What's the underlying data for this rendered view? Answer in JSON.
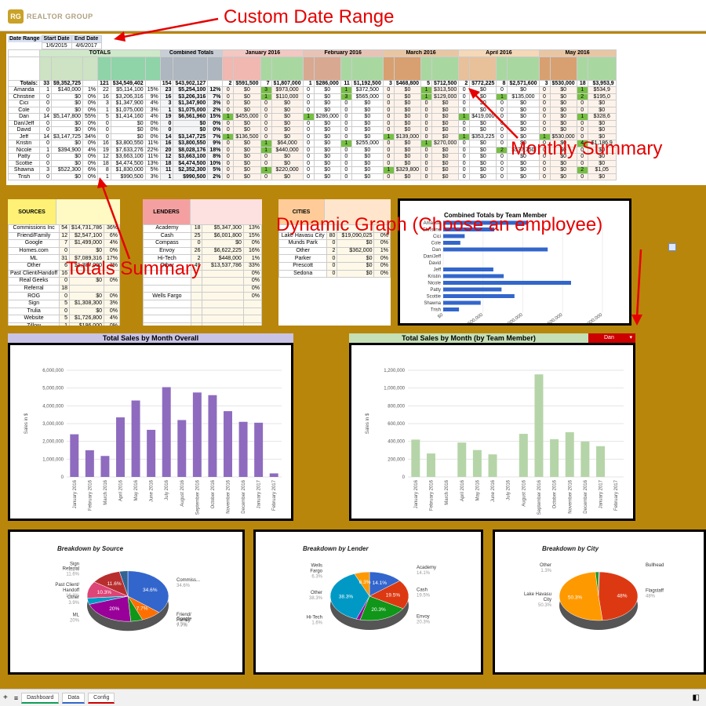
{
  "app": {
    "logo_text": "REALTOR GROUP"
  },
  "callouts": {
    "date_range": "Custom Date Range",
    "monthly": "Monthly Summary",
    "graph": "Dynamic Graph (Choose an employee)",
    "totals": "Totals Summary"
  },
  "date_range": {
    "label": "Date Range",
    "start_label": "Start Date",
    "end_label": "End Date",
    "start": "1/6/2015",
    "end": "4/6/2017"
  },
  "groups": {
    "totals": "TOTALS",
    "combined": "Combined Totals",
    "m1": "January 2016",
    "m2": "February 2016",
    "m3": "March 2016",
    "m4": "April 2016",
    "m5": "May 2016"
  },
  "summary": {
    "label": "Totals:",
    "values": [
      "33",
      "$9,352,725",
      "",
      "121",
      "$34,549,402",
      "",
      "154",
      "$43,902,127",
      "",
      "2",
      "$591,500",
      "7",
      "$1,807,000",
      "1",
      "$286,000",
      "11",
      "$1,192,500",
      "3",
      "$468,800",
      "5",
      "$712,500",
      "2",
      "$772,225",
      "8",
      "$2,571,600",
      "3",
      "$530,000",
      "18",
      "$3,953,9"
    ]
  },
  "employees": [
    {
      "name": "Amanda",
      "v": [
        "1",
        "$140,000",
        "1%",
        "22",
        "$5,114,100",
        "15%",
        "23",
        "$5,254,100",
        "12%",
        "0",
        "$0",
        "3",
        "$973,000",
        "0",
        "$0",
        "1",
        "$372,500",
        "0",
        "$0",
        "1",
        "$313,500",
        "0",
        "$0",
        "0",
        "$0",
        "0",
        "$0",
        "1",
        "$534,9"
      ]
    },
    {
      "name": "Christine",
      "v": [
        "0",
        "$0",
        "0%",
        "16",
        "$3,206,316",
        "9%",
        "16",
        "$3,206,316",
        "7%",
        "0",
        "$0",
        "1",
        "$110,000",
        "0",
        "$0",
        "3",
        "$565,000",
        "0",
        "$0",
        "1",
        "$129,000",
        "0",
        "$0",
        "1",
        "$135,000",
        "0",
        "$0",
        "2",
        "$195,0"
      ]
    },
    {
      "name": "Cici",
      "v": [
        "0",
        "$0",
        "0%",
        "3",
        "$1,347,900",
        "4%",
        "3",
        "$1,347,900",
        "3%",
        "0",
        "$0",
        "0",
        "$0",
        "0",
        "$0",
        "0",
        "$0",
        "0",
        "$0",
        "0",
        "$0",
        "0",
        "$0",
        "0",
        "$0",
        "0",
        "$0",
        "0",
        "$0"
      ]
    },
    {
      "name": "Cole",
      "v": [
        "0",
        "$0",
        "0%",
        "1",
        "$1,075,000",
        "3%",
        "1",
        "$1,075,000",
        "2%",
        "0",
        "$0",
        "0",
        "$0",
        "0",
        "$0",
        "0",
        "$0",
        "0",
        "$0",
        "0",
        "$0",
        "0",
        "$0",
        "0",
        "$0",
        "0",
        "$0",
        "0",
        "$0"
      ]
    },
    {
      "name": "Dan",
      "v": [
        "14",
        "$5,147,800",
        "55%",
        "5",
        "$1,414,160",
        "4%",
        "19",
        "$6,561,960",
        "15%",
        "1",
        "$455,000",
        "0",
        "$0",
        "1",
        "$286,000",
        "0",
        "$0",
        "0",
        "$0",
        "0",
        "$0",
        "1",
        "$419,000",
        "0",
        "$0",
        "0",
        "$0",
        "1",
        "$328,6"
      ]
    },
    {
      "name": "Dan/Jeff",
      "v": [
        "0",
        "$0",
        "0%",
        "0",
        "$0",
        "0%",
        "0",
        "$0",
        "0%",
        "0",
        "$0",
        "0",
        "$0",
        "0",
        "$0",
        "0",
        "$0",
        "0",
        "$0",
        "0",
        "$0",
        "0",
        "$0",
        "0",
        "$0",
        "0",
        "$0",
        "0",
        "$0"
      ]
    },
    {
      "name": "David",
      "v": [
        "0",
        "$0",
        "0%",
        "0",
        "$0",
        "0%",
        "0",
        "$0",
        "0%",
        "0",
        "$0",
        "0",
        "$0",
        "0",
        "$0",
        "0",
        "$0",
        "0",
        "$0",
        "0",
        "$0",
        "0",
        "$0",
        "0",
        "$0",
        "0",
        "$0",
        "0",
        "$0"
      ]
    },
    {
      "name": "Jeff",
      "v": [
        "14",
        "$3,147,725",
        "34%",
        "0",
        "$0",
        "0%",
        "14",
        "$3,147,725",
        "7%",
        "1",
        "$136,500",
        "0",
        "$0",
        "0",
        "$0",
        "0",
        "$0",
        "1",
        "$139,000",
        "0",
        "$0",
        "1",
        "$353,225",
        "0",
        "$0",
        "1",
        "$530,000",
        "0",
        "$0"
      ]
    },
    {
      "name": "Kristin",
      "v": [
        "0",
        "$0",
        "0%",
        "16",
        "$3,800,550",
        "11%",
        "16",
        "$3,800,550",
        "9%",
        "0",
        "$0",
        "1",
        "$64,000",
        "0",
        "$0",
        "1",
        "$255,000",
        "0",
        "$0",
        "1",
        "$270,000",
        "0",
        "$0",
        "0",
        "$0",
        "0",
        "$0",
        "4",
        "$1,186,9"
      ]
    },
    {
      "name": "Nicole",
      "v": [
        "1",
        "$394,900",
        "4%",
        "19",
        "$7,633,276",
        "22%",
        "20",
        "$8,028,176",
        "18%",
        "0",
        "$0",
        "1",
        "$440,000",
        "0",
        "$0",
        "0",
        "$0",
        "0",
        "$0",
        "0",
        "$0",
        "0",
        "$0",
        "2",
        "$537,750",
        "0",
        "$0",
        "0",
        "$0"
      ]
    },
    {
      "name": "Patty",
      "v": [
        "0",
        "$0",
        "0%",
        "12",
        "$3,663,100",
        "11%",
        "12",
        "$3,663,100",
        "8%",
        "0",
        "$0",
        "0",
        "$0",
        "0",
        "$0",
        "0",
        "$0",
        "0",
        "$0",
        "0",
        "$0",
        "0",
        "$0",
        "0",
        "$0",
        "0",
        "$0",
        "0",
        "$0"
      ]
    },
    {
      "name": "Scottie",
      "v": [
        "0",
        "$0",
        "0%",
        "18",
        "$4,474,500",
        "13%",
        "18",
        "$4,474,500",
        "10%",
        "0",
        "$0",
        "0",
        "$0",
        "0",
        "$0",
        "0",
        "$0",
        "0",
        "$0",
        "0",
        "$0",
        "0",
        "$0",
        "0",
        "$0",
        "0",
        "$0",
        "0",
        "$0"
      ]
    },
    {
      "name": "Shawna",
      "v": [
        "3",
        "$522,300",
        "6%",
        "8",
        "$1,830,000",
        "5%",
        "11",
        "$2,352,300",
        "5%",
        "0",
        "$0",
        "1",
        "$220,000",
        "0",
        "$0",
        "0",
        "$0",
        "1",
        "$329,800",
        "0",
        "$0",
        "0",
        "$0",
        "0",
        "$0",
        "0",
        "$0",
        "2",
        "$1,05"
      ]
    },
    {
      "name": "Trish",
      "v": [
        "0",
        "$0",
        "0%",
        "1",
        "$990,500",
        "3%",
        "1",
        "$990,500",
        "2%",
        "0",
        "$0",
        "0",
        "$0",
        "0",
        "$0",
        "0",
        "$0",
        "0",
        "$0",
        "0",
        "$0",
        "0",
        "$0",
        "0",
        "$0",
        "0",
        "$0",
        "0",
        "$0"
      ]
    }
  ],
  "sources": {
    "title": "SOURCES",
    "rows": [
      [
        "Commissions Inc",
        "54",
        "$14,731,786",
        "36%"
      ],
      [
        "Friend/Family",
        "12",
        "$2,547,100",
        "6%"
      ],
      [
        "Google",
        "7",
        "$1,499,000",
        "4%"
      ],
      [
        "Homes.com",
        "0",
        "$0",
        "0%"
      ],
      [
        "ML",
        "31",
        "$7,089,316",
        "17%"
      ],
      [
        "Other",
        "6",
        "$1,387,000",
        "3%"
      ],
      [
        "Past Client/Handoff",
        "16",
        "",
        ""
      ],
      [
        "Real Geeks",
        "0",
        "$0",
        "0%"
      ],
      [
        "Referral",
        "18",
        "",
        ""
      ],
      [
        "ROG",
        "0",
        "$0",
        "0%"
      ],
      [
        "Sign",
        "5",
        "$1,308,300",
        "3%"
      ],
      [
        "Trulia",
        "0",
        "$0",
        "0%"
      ],
      [
        "Website",
        "5",
        "$1,726,800",
        "4%"
      ],
      [
        "Zillow",
        "1",
        "$196,000",
        "0%"
      ]
    ]
  },
  "lenders": {
    "title": "LENDERS",
    "rows": [
      [
        "Academy",
        "18",
        "$5,347,300",
        "13%"
      ],
      [
        "Cash",
        "25",
        "$6,001,800",
        "15%"
      ],
      [
        "Compass",
        "0",
        "$0",
        "0%"
      ],
      [
        "Envoy",
        "26",
        "$6,622,225",
        "16%"
      ],
      [
        "Hi-Tech",
        "2",
        "$448,000",
        "1%"
      ],
      [
        "Other",
        "49",
        "$13,537,786",
        "33%"
      ],
      [
        "",
        "",
        "",
        "0%"
      ],
      [
        "",
        "",
        "",
        "0%"
      ],
      [
        "",
        "",
        "",
        "0%"
      ],
      [
        "Wells Fargo",
        "",
        "",
        "0%"
      ],
      [
        "",
        "",
        "",
        ""
      ],
      [
        "",
        "",
        "",
        ""
      ],
      [
        "",
        "",
        "",
        ""
      ],
      [
        "",
        "",
        "",
        ""
      ]
    ]
  },
  "cities": {
    "title": "CITIES",
    "rows": [
      [
        "",
        "",
        "",
        ""
      ],
      [
        "Lake Havasu City",
        "80",
        "$19,090,025",
        "0%"
      ],
      [
        "Munds Park",
        "0",
        "$0",
        "0%"
      ],
      [
        "Other",
        "2",
        "$362,000",
        "1%"
      ],
      [
        "Parker",
        "0",
        "$0",
        "0%"
      ],
      [
        "Prescott",
        "0",
        "$0",
        "0%"
      ],
      [
        "Sedona",
        "0",
        "$0",
        "0%"
      ]
    ]
  },
  "charts": {
    "team_bar_title": "Combined Totals by Team Member",
    "monthly_overall_title": "Total Sales by Month Overall",
    "monthly_member_title": "Total Sales by Month (by Team Member)",
    "member_select": "Dan",
    "source_title": "Breakdown by Source",
    "lender_title": "Breakdown by Lender",
    "city_title": "Breakdown by City",
    "ylabel": "Sales in $"
  },
  "tabs": [
    "Dashboard",
    "Data",
    "Config"
  ],
  "chart_data": [
    {
      "type": "bar",
      "title": "Combined Totals by Team Member",
      "categories": [
        "Amanda",
        "Christine",
        "Cici",
        "Cole",
        "Dan",
        "Dan/Jeff",
        "David",
        "Jeff",
        "Kristin",
        "Nicole",
        "Patty",
        "Scottie",
        "Shawna",
        "Trish"
      ],
      "values": [
        5254100,
        3206316,
        1347900,
        1075000,
        6561960,
        0,
        0,
        3147725,
        3800550,
        8028176,
        3663100,
        4474500,
        2352300,
        990500
      ],
      "xticks": [
        "$0",
        "$2,500,000",
        "$5,000,000",
        "$7,500,000",
        "$10,000,000"
      ],
      "xlim": [
        0,
        10000000
      ],
      "orientation": "horizontal"
    },
    {
      "type": "bar",
      "title": "Total Sales by Month Overall",
      "categories": [
        "January 2016",
        "February 2016",
        "March 2016",
        "April 2016",
        "May 2016",
        "June 2016",
        "July 2016",
        "August 2016",
        "September 2016",
        "October 2016",
        "November 2016",
        "December 2016",
        "January 2017",
        "February 2017"
      ],
      "values": [
        2400000,
        1500000,
        1180000,
        3350000,
        4300000,
        2650000,
        5050000,
        3200000,
        4750000,
        4600000,
        3700000,
        3100000,
        3050000,
        200000
      ],
      "ylabel": "Sales in $",
      "ylim": [
        0,
        6000000
      ],
      "yticks": [
        "0",
        "1,000,000",
        "2,000,000",
        "3,000,000",
        "4,000,000",
        "5,000,000",
        "6,000,000"
      ]
    },
    {
      "type": "bar",
      "title": "Total Sales by Month (by Team Member)",
      "categories": [
        "January 2016",
        "February 2016",
        "March 2016",
        "April 2016",
        "May 2016",
        "June 2016",
        "July 2016",
        "August 2016",
        "September 2016",
        "October 2016",
        "November 2016",
        "December 2016",
        "January 2017",
        "February 2017"
      ],
      "values": [
        455000,
        286000,
        0,
        419000,
        328000,
        275000,
        0,
        525000,
        1250000,
        460000,
        545000,
        432000,
        375000,
        0
      ],
      "ylabel": "Sales in $",
      "ylim": [
        0,
        1300000
      ],
      "yticks": [
        "0",
        "200,000",
        "400,000",
        "600,000",
        "800,000",
        "1,000,000",
        "1,200,000"
      ]
    },
    {
      "type": "pie",
      "title": "Breakdown by Source",
      "slices": [
        {
          "label": "Commiss...",
          "value": 34.6,
          "pct": "34.6%",
          "color": "#3366cc"
        },
        {
          "label": "Friend/ Family",
          "value": 7.7,
          "pct": "7.7%",
          "color": "#ff6f00"
        },
        {
          "label": "Google",
          "value": 4.5,
          "pct": "4.5%",
          "color": "#109618"
        },
        {
          "label": "ML",
          "value": 20,
          "pct": "20%",
          "color": "#990099"
        },
        {
          "label": "Other",
          "value": 3.9,
          "pct": "3.9%",
          "color": "#0099c6"
        },
        {
          "label": "Past Client/ Handoff",
          "value": 10.3,
          "pct": "10.3%",
          "color": "#dd4477"
        },
        {
          "label": "Referral",
          "value": 11.6,
          "pct": "11.6%",
          "color": "#b82e2e"
        },
        {
          "label": "Sign",
          "value": 3.2,
          "pct": "3.2%",
          "color": "#316395"
        }
      ]
    },
    {
      "type": "pie",
      "title": "Breakdown by Lender",
      "slices": [
        {
          "label": "Academy",
          "value": 14.1,
          "pct": "14.1%",
          "color": "#3366cc"
        },
        {
          "label": "Cash",
          "value": 19.5,
          "pct": "19.5%",
          "color": "#dc3912"
        },
        {
          "label": "Envoy",
          "value": 20.3,
          "pct": "20.3%",
          "color": "#109618"
        },
        {
          "label": "Hi-Tech",
          "value": 1.6,
          "pct": "1.6%",
          "color": "#990099"
        },
        {
          "label": "Other",
          "value": 38.3,
          "pct": "38.3%",
          "color": "#0099c6"
        },
        {
          "label": "Wells Fargo",
          "value": 6.3,
          "pct": "6.3%",
          "color": "#ff9900"
        }
      ]
    },
    {
      "type": "pie",
      "title": "Breakdown by City",
      "slices": [
        {
          "label": "Bullhead",
          "value": 0.4,
          "pct": "",
          "color": "#3366cc"
        },
        {
          "label": "Flagstaff",
          "value": 48,
          "pct": "48%",
          "color": "#dc3912"
        },
        {
          "label": "Lake Havasu City",
          "value": 50.3,
          "pct": "50.3%",
          "color": "#ff9900"
        },
        {
          "label": "Other",
          "value": 1.3,
          "pct": "1.3%",
          "color": "#109618"
        }
      ]
    }
  ],
  "colors": {
    "background": "#b8860b",
    "sources_hdr": "#fff176",
    "lenders_hdr": "#f4a0a0",
    "cities_hdr": "#ffcc99",
    "purple_bar": "#8e6bbf",
    "green_bar": "#b5d5a8",
    "blue_bar": "#3366cc",
    "highlight": "#76c043",
    "select_red": "#cc0000"
  }
}
